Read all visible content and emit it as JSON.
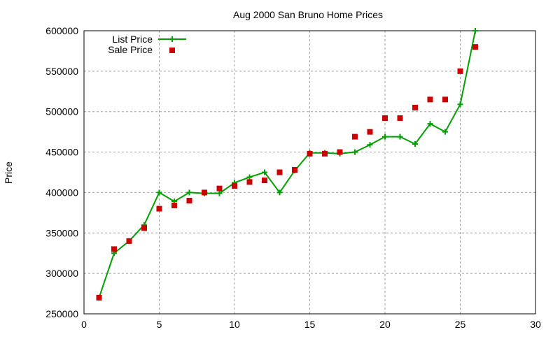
{
  "chart_data": {
    "type": "line",
    "title": "Aug 2000 San Bruno Home Prices",
    "xlabel": "",
    "ylabel": "Price",
    "xlim": [
      0,
      30
    ],
    "ylim": [
      250000,
      600000
    ],
    "xticks": [
      0,
      5,
      10,
      15,
      20,
      25,
      30
    ],
    "yticks": [
      250000,
      300000,
      350000,
      400000,
      450000,
      500000,
      550000,
      600000
    ],
    "grid": true,
    "legend_position": "top-left",
    "x": [
      1,
      2,
      3,
      4,
      5,
      6,
      7,
      8,
      9,
      10,
      11,
      12,
      13,
      14,
      15,
      16,
      17,
      18,
      19,
      20,
      21,
      22,
      23,
      24,
      25,
      26
    ],
    "series": [
      {
        "name": "List Price",
        "style": "linespoints",
        "color": "#00a000",
        "values": [
          270000,
          325000,
          340000,
          360000,
          400000,
          389000,
          400000,
          399000,
          399000,
          412000,
          419000,
          425000,
          400000,
          427000,
          449000,
          449000,
          448000,
          450000,
          459000,
          469000,
          469000,
          460000,
          485000,
          475000,
          509000,
          600000
        ]
      },
      {
        "name": "Sale Price",
        "style": "points",
        "color": "#cc0000",
        "values": [
          270000,
          330000,
          340000,
          356000,
          380000,
          384000,
          390000,
          400000,
          405000,
          408000,
          413000,
          415000,
          425000,
          428000,
          448000,
          448000,
          450000,
          469000,
          475000,
          492000,
          492000,
          505000,
          515000,
          515000,
          550000,
          580000
        ]
      }
    ]
  }
}
